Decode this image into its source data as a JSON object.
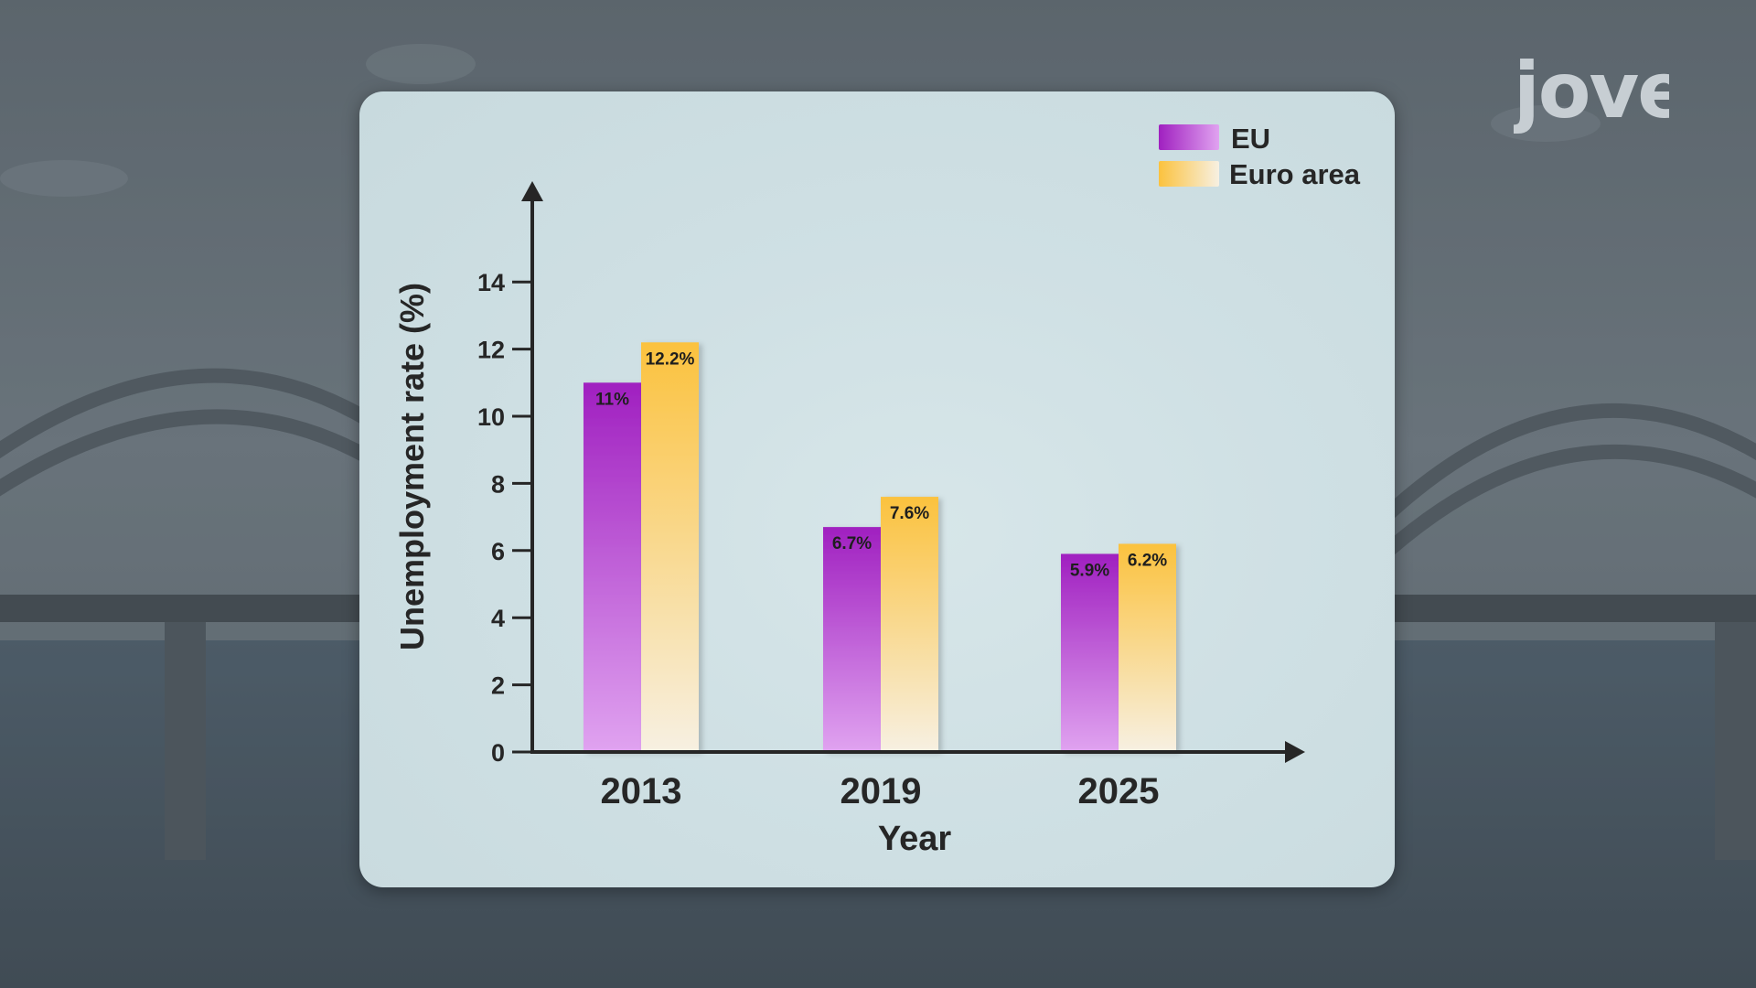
{
  "logo": {
    "text": "jove"
  },
  "colors": {
    "eu_top": "#a020c0",
    "eu_bottom": "#e0a3f0",
    "euro_top": "#fbc23e",
    "euro_bottom": "#f7f0e2",
    "axis": "#262626"
  },
  "chart_data": {
    "type": "bar",
    "categories": [
      "2013",
      "2019",
      "2025"
    ],
    "series": [
      {
        "name": "EU",
        "values": [
          11,
          6.7,
          5.9
        ],
        "labels": [
          "11%",
          "6.7%",
          "5.9%"
        ]
      },
      {
        "name": "Euro area",
        "values": [
          12.2,
          7.6,
          6.2
        ],
        "labels": [
          "12.2%",
          "7.6%",
          "6.2%"
        ]
      }
    ],
    "xlabel": "Year",
    "ylabel": "Unemployment rate (%)",
    "yticks": [
      0,
      2,
      4,
      6,
      8,
      10,
      12,
      14
    ],
    "ylim": [
      0,
      14
    ],
    "legend_position": "top-right",
    "grid": false
  }
}
